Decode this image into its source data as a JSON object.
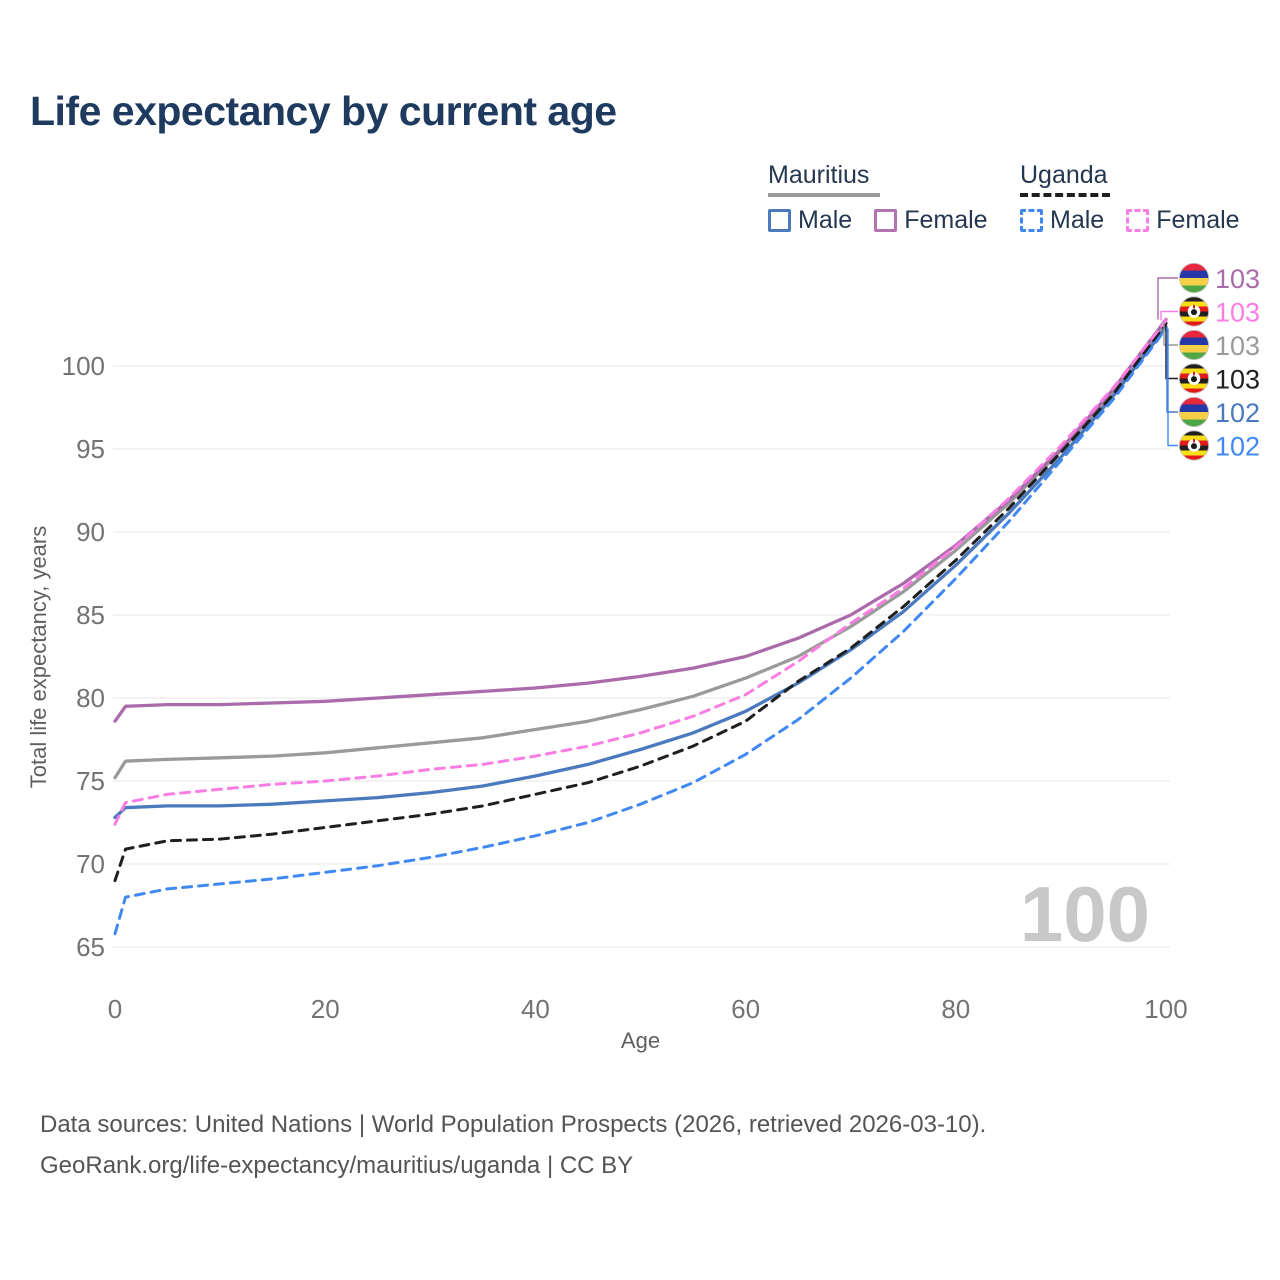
{
  "title": "Life expectancy by current age",
  "legend": {
    "groups": [
      {
        "label": "Mauritius",
        "line_color": "#9a9a9a",
        "line_style": "solid",
        "items": [
          {
            "label": "Male",
            "color": "#4a79bd",
            "style": "solid"
          },
          {
            "label": "Female",
            "color": "#b273b0",
            "style": "solid"
          }
        ]
      },
      {
        "label": "Uganda",
        "line_color": "#1f1f1f",
        "line_style": "dashed",
        "items": [
          {
            "label": "Male",
            "color": "#4189f2",
            "style": "dashed"
          },
          {
            "label": "Female",
            "color": "#fb7de4",
            "style": "dashed"
          }
        ]
      }
    ]
  },
  "chart_data": {
    "type": "line",
    "title": "Life expectancy by current age",
    "xlabel": "Age",
    "ylabel": "Total life expectancy, years",
    "xlim": [
      0,
      100
    ],
    "ylim": [
      65,
      103.5
    ],
    "xticks": [
      0,
      20,
      40,
      60,
      80,
      100
    ],
    "yticks": [
      65,
      70,
      75,
      80,
      85,
      90,
      95,
      100
    ],
    "grid": "horizontal",
    "legend_position": "top-right",
    "watermark": "100",
    "x": [
      0,
      1,
      5,
      10,
      15,
      20,
      25,
      30,
      35,
      40,
      45,
      50,
      55,
      60,
      65,
      70,
      75,
      80,
      85,
      90,
      95,
      100
    ],
    "series": [
      {
        "id": "mauritius-female",
        "name": "Mauritius Female",
        "color": "#aa6bab",
        "dashed": false,
        "flag": "mauritius",
        "end_label": "103",
        "values": [
          78.6,
          79.5,
          79.6,
          79.6,
          79.7,
          79.8,
          80.0,
          80.2,
          80.4,
          80.6,
          80.9,
          81.3,
          81.8,
          82.5,
          83.6,
          85.0,
          86.9,
          89.2,
          91.9,
          95.0,
          98.6,
          102.8
        ]
      },
      {
        "id": "uganda-female",
        "name": "Uganda Female",
        "color": "#fb7de4",
        "dashed": true,
        "flag": "uganda",
        "end_label": "103",
        "values": [
          72.4,
          73.7,
          74.2,
          74.5,
          74.8,
          75.0,
          75.3,
          75.7,
          76.0,
          76.5,
          77.1,
          77.9,
          78.9,
          80.2,
          82.2,
          84.5,
          86.6,
          89.1,
          92.0,
          95.2,
          98.7,
          102.75
        ]
      },
      {
        "id": "mauritius-all",
        "name": "Mauritius",
        "color": "#9a9a9a",
        "dashed": false,
        "flag": "mauritius",
        "end_label": "103",
        "values": [
          75.2,
          76.2,
          76.3,
          76.4,
          76.5,
          76.7,
          77.0,
          77.3,
          77.6,
          78.1,
          78.6,
          79.3,
          80.1,
          81.2,
          82.5,
          84.3,
          86.4,
          88.9,
          91.7,
          94.9,
          98.4,
          102.6
        ]
      },
      {
        "id": "uganda-all",
        "name": "Uganda",
        "color": "#1f1f1f",
        "dashed": true,
        "flag": "uganda",
        "end_label": "103",
        "values": [
          69.0,
          70.9,
          71.4,
          71.5,
          71.8,
          72.2,
          72.6,
          73.0,
          73.5,
          74.2,
          74.9,
          75.9,
          77.1,
          78.6,
          81.0,
          83.0,
          85.5,
          88.3,
          91.4,
          94.8,
          98.3,
          102.55
        ]
      },
      {
        "id": "mauritius-male",
        "name": "Mauritius Male",
        "color": "#4a79bd",
        "dashed": false,
        "flag": "mauritius",
        "end_label": "102",
        "values": [
          72.8,
          73.4,
          73.5,
          73.5,
          73.6,
          73.8,
          74.0,
          74.3,
          74.7,
          75.3,
          76.0,
          76.9,
          77.9,
          79.2,
          80.9,
          82.9,
          85.2,
          88.0,
          91.1,
          94.5,
          98.2,
          102.35
        ]
      },
      {
        "id": "uganda-male",
        "name": "Uganda Male",
        "color": "#4189f2",
        "dashed": true,
        "flag": "uganda",
        "end_label": "102",
        "values": [
          65.8,
          68.0,
          68.5,
          68.8,
          69.1,
          69.5,
          69.9,
          70.4,
          71.0,
          71.7,
          72.5,
          73.6,
          74.9,
          76.6,
          78.7,
          81.2,
          84.0,
          87.2,
          90.6,
          94.3,
          98.0,
          102.25
        ]
      }
    ]
  },
  "flag_colors": {
    "mauritius": [
      "#E6273E",
      "#2638A8",
      "#F7CF46",
      "#4DA546"
    ],
    "uganda": [
      "#231F20",
      "#F9DD16",
      "#E21A1A",
      "#231F20",
      "#F9DD16",
      "#E21A1A"
    ]
  },
  "footer": {
    "line1": "Data sources: United Nations | World Population Prospects (2026, retrieved 2026-03-10).",
    "line2": "GeoRank.org/life-expectancy/mauritius/uganda | CC BY"
  }
}
